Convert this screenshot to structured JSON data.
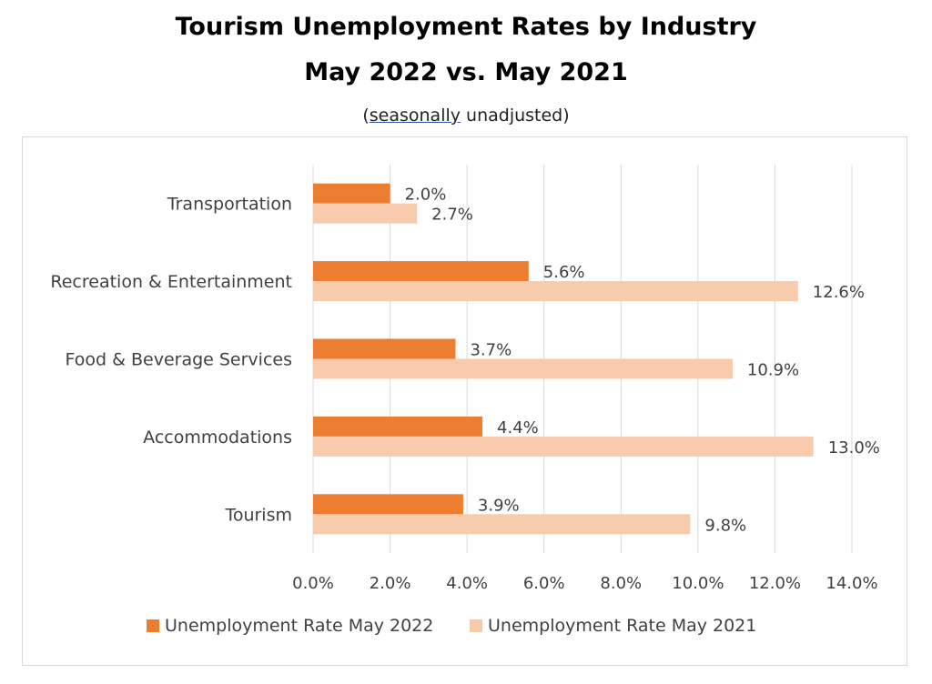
{
  "chart_data": {
    "type": "bar",
    "orientation": "horizontal",
    "title": "Tourism Unemployment Rates by Industry",
    "subtitle": "May 2022 vs. May 2021",
    "note_prefix": "(",
    "note_underlined": "seasonally",
    "note_suffix": " unadjusted)",
    "categories": [
      "Transportation",
      "Recreation & Entertainment",
      "Food & Beverage Services",
      "Accommodations",
      "Tourism"
    ],
    "series": [
      {
        "name": "Unemployment Rate May 2022",
        "color": "#ed7d31",
        "values": [
          2.0,
          5.6,
          3.7,
          4.4,
          3.9
        ],
        "labels": [
          "2.0%",
          "5.6%",
          "3.7%",
          "4.4%",
          "3.9%"
        ]
      },
      {
        "name": "Unemployment Rate May 2021",
        "color": "#f8cbad",
        "values": [
          2.7,
          12.6,
          10.9,
          13.0,
          9.8
        ],
        "labels": [
          "2.7%",
          "12.6%",
          "10.9%",
          "13.0%",
          "9.8%"
        ]
      }
    ],
    "xlim": [
      0,
      14
    ],
    "xticks": [
      0,
      2,
      4,
      6,
      8,
      10,
      12,
      14
    ],
    "xtick_labels": [
      "0.0%",
      "2.0%",
      "4.0%",
      "6.0%",
      "8.0%",
      "10.0%",
      "12.0%",
      "14.0%"
    ],
    "grid": true,
    "legend_position": "bottom",
    "gridline_color": "#d9d9d9"
  }
}
